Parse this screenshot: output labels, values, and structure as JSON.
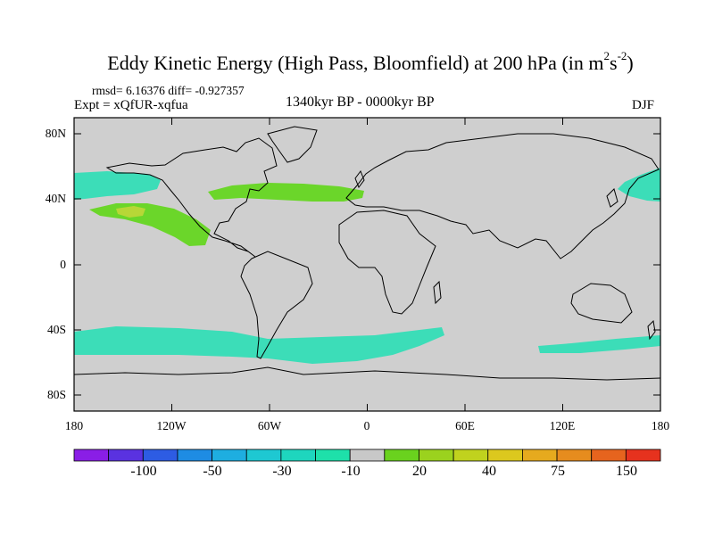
{
  "title": {
    "main": "Eddy Kinetic Energy (High Pass, Bloomfield) at 200 hPa (in m",
    "sup1": "2",
    "mid": "s",
    "sup2": "-2",
    "end": ")"
  },
  "stats": "rmsd= 6.16376  diff= -0.927357",
  "expt": "Expt = xQfUR-xqfua",
  "period": "1340kyr BP - 0000kyr BP",
  "season": "DJF",
  "lat_labels": [
    "80N",
    "40N",
    "0",
    "40S",
    "80S"
  ],
  "lon_labels": [
    "180",
    "120W",
    "60W",
    "0",
    "60E",
    "120E",
    "180"
  ],
  "colorbar": {
    "colors": [
      "#8a1ee6",
      "#5a32e0",
      "#2d5ce3",
      "#1e8ce3",
      "#1eaee0",
      "#1ec8d2",
      "#1ed6be",
      "#1ee0aa",
      "#c8c8c8",
      "#6ad21e",
      "#9bd21e",
      "#c0d21e",
      "#dcc81e",
      "#e6aa1e",
      "#e68c1e",
      "#e6641e",
      "#e6321e"
    ],
    "labels": [
      "-100",
      "-50",
      "-30",
      "-10",
      "20",
      "40",
      "75",
      "150"
    ]
  },
  "legend_colors": {
    "land_bg": "#cfcfcf",
    "negative": "#3cddb8",
    "positive": "#6bd62a",
    "strong": "#b7d737"
  }
}
